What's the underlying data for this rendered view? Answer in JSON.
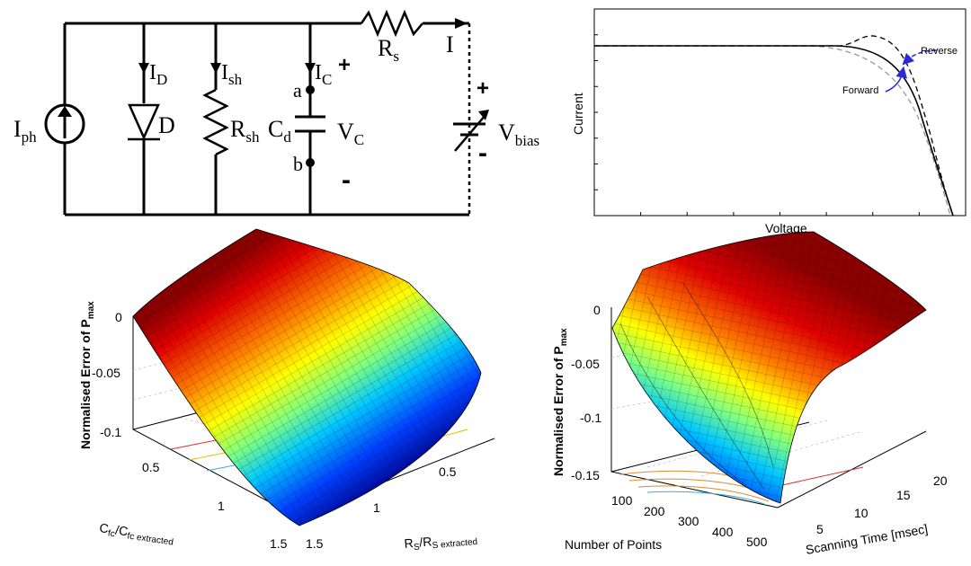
{
  "circuit": {
    "labels": {
      "iph_main": "I",
      "iph_sub": "ph",
      "id_main": "I",
      "id_sub": "D",
      "d": "D",
      "ish_main": "I",
      "ish_sub": "sh",
      "rsh_main": "R",
      "rsh_sub": "sh",
      "cd_main": "C",
      "cd_sub": "d",
      "ic_main": "I",
      "ic_sub": "C",
      "a": "a",
      "b": "b",
      "vc_main": "V",
      "vc_sub": "C",
      "plus_c": "+",
      "minus_c": "-",
      "rs_main": "R",
      "rs_sub": "s",
      "i": "I",
      "plus_bias": "+",
      "minus_bias": "-",
      "vbias_main": "V",
      "vbias_sub": "bias"
    }
  },
  "chart_data": [
    {
      "type": "line",
      "xlabel": "Voltage",
      "ylabel": "Current",
      "annotations": [
        "Forward",
        "Reverse"
      ],
      "series": [
        {
          "style": "solid",
          "color": "#000000"
        },
        {
          "style": "dashed",
          "color": "#000000"
        },
        {
          "style": "dashed",
          "color": "#999999"
        }
      ],
      "xticks_count": 8,
      "yticks_count": 8
    },
    {
      "type": "surface",
      "zlabel_main": "Normalised Error of P",
      "zlabel_sub": "max",
      "zticks": [
        "0",
        "-0.05",
        "-0.1"
      ],
      "xlabel_main": "R",
      "xlabel_sub1": "S",
      "xlabel_mid": "/R",
      "xlabel_sub2": "S extracted",
      "xticks": [
        "0.5",
        "1",
        "1.5"
      ],
      "ylabel_main": "C",
      "ylabel_sub1": "fc",
      "ylabel_mid": "/C",
      "ylabel_sub2": "fc extracted",
      "yticks": [
        "0.5",
        "1",
        "1.5"
      ],
      "colormap": "jet"
    },
    {
      "type": "surface",
      "zlabel_main": "Normalised Error of P",
      "zlabel_sub": "max",
      "zticks": [
        "0",
        "-0.05",
        "-0.1",
        "-0.15"
      ],
      "xlabel": "Number of Points",
      "xticks": [
        "100",
        "200",
        "300",
        "400",
        "500"
      ],
      "ylabel": "Scanning Time [msec]",
      "yticks": [
        "5",
        "10",
        "15",
        "20"
      ],
      "colormap": "jet"
    }
  ]
}
